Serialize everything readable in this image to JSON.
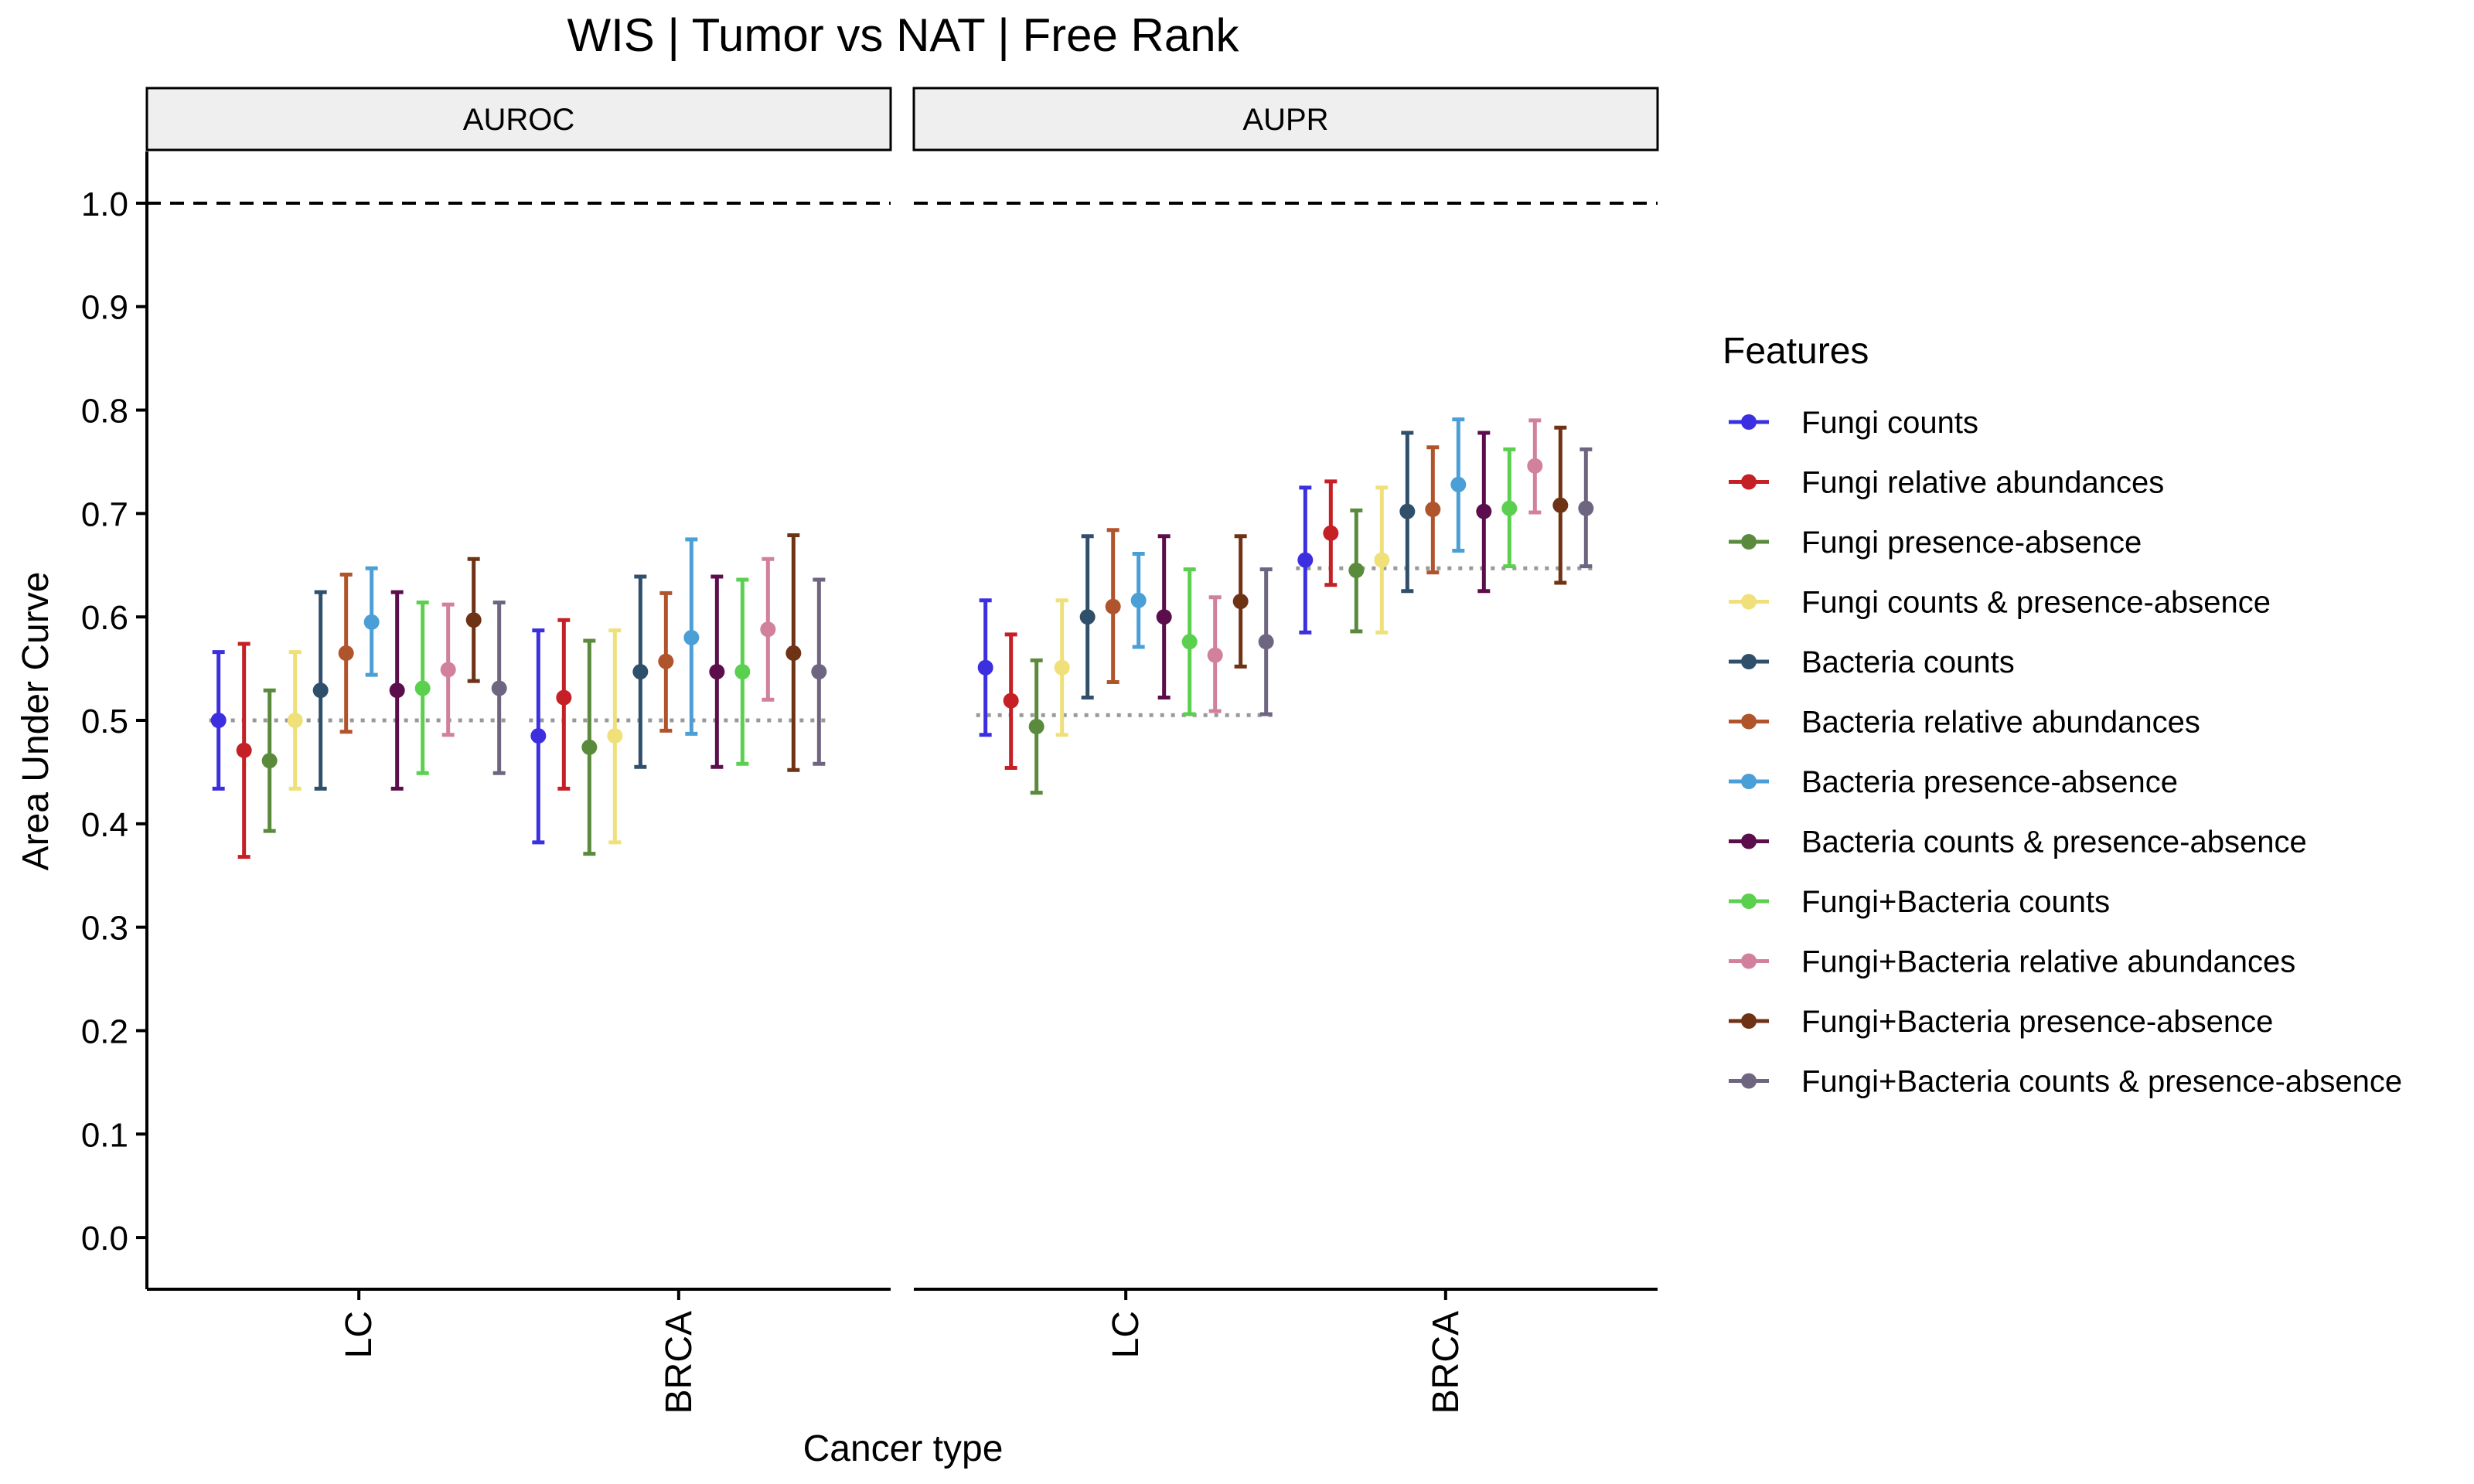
{
  "chart_data": {
    "type": "errorbar",
    "title": "WIS | Tumor vs NAT | Free Rank",
    "xlabel": "Cancer type",
    "ylabel": "Area Under Curve",
    "ylim": [
      -0.05,
      1.05
    ],
    "yticks": [
      0.0,
      0.1,
      0.2,
      0.3,
      0.4,
      0.5,
      0.6,
      0.7,
      0.8,
      0.9,
      1.0
    ],
    "ytick_labels": [
      "0.0",
      "0.1",
      "0.2",
      "0.3",
      "0.4",
      "0.5",
      "0.6",
      "0.7",
      "0.8",
      "0.9",
      "1.0"
    ],
    "categories": [
      "LC",
      "BRCA"
    ],
    "reference_line": 1.0,
    "grid": false,
    "legend": {
      "title": "Features",
      "placement": "right",
      "entries": [
        "Fungi counts",
        "Fungi relative abundances",
        "Fungi presence-absence",
        "Fungi counts & presence-absence",
        "Bacteria counts",
        "Bacteria relative abundances",
        "Bacteria presence-absence",
        "Bacteria counts & presence-absence",
        "Fungi+Bacteria counts",
        "Fungi+Bacteria relative abundances",
        "Fungi+Bacteria presence-absence",
        "Fungi+Bacteria counts & presence-absence"
      ]
    },
    "colors": [
      "#3b2fe0",
      "#c42026",
      "#5a8a3c",
      "#efe07a",
      "#2f4f6b",
      "#b0542b",
      "#4a9fd6",
      "#5c0e4c",
      "#5bd04f",
      "#d1809e",
      "#6e3214",
      "#6e6680"
    ],
    "panels": [
      {
        "name": "AUROC",
        "baseline": [
          0.5,
          0.5
        ],
        "series": [
          {
            "name": "Fungi counts",
            "values": [
              0.5,
              0.485
            ],
            "lower": [
              0.434,
              0.382
            ],
            "upper": [
              0.566,
              0.587
            ]
          },
          {
            "name": "Fungi relative abundances",
            "values": [
              0.471,
              0.522
            ],
            "lower": [
              0.368,
              0.434
            ],
            "upper": [
              0.574,
              0.597
            ]
          },
          {
            "name": "Fungi presence-absence",
            "values": [
              0.461,
              0.474
            ],
            "lower": [
              0.393,
              0.371
            ],
            "upper": [
              0.529,
              0.577
            ]
          },
          {
            "name": "Fungi counts & presence-absence",
            "values": [
              0.5,
              0.485
            ],
            "lower": [
              0.434,
              0.382
            ],
            "upper": [
              0.566,
              0.587
            ]
          },
          {
            "name": "Bacteria counts",
            "values": [
              0.529,
              0.547
            ],
            "lower": [
              0.434,
              0.455
            ],
            "upper": [
              0.624,
              0.639
            ]
          },
          {
            "name": "Bacteria relative abundances",
            "values": [
              0.565,
              0.557
            ],
            "lower": [
              0.489,
              0.49
            ],
            "upper": [
              0.641,
              0.623
            ]
          },
          {
            "name": "Bacteria presence-absence",
            "values": [
              0.595,
              0.58
            ],
            "lower": [
              0.544,
              0.487
            ],
            "upper": [
              0.647,
              0.675
            ]
          },
          {
            "name": "Bacteria counts & presence-absence",
            "values": [
              0.529,
              0.547
            ],
            "lower": [
              0.434,
              0.455
            ],
            "upper": [
              0.624,
              0.639
            ]
          },
          {
            "name": "Fungi+Bacteria counts",
            "values": [
              0.531,
              0.547
            ],
            "lower": [
              0.449,
              0.458
            ],
            "upper": [
              0.614,
              0.636
            ]
          },
          {
            "name": "Fungi+Bacteria relative abundances",
            "values": [
              0.549,
              0.588
            ],
            "lower": [
              0.486,
              0.52
            ],
            "upper": [
              0.612,
              0.656
            ]
          },
          {
            "name": "Fungi+Bacteria presence-absence",
            "values": [
              0.597,
              0.565
            ],
            "lower": [
              0.538,
              0.452
            ],
            "upper": [
              0.656,
              0.679
            ]
          },
          {
            "name": "Fungi+Bacteria counts & presence-absence",
            "values": [
              0.531,
              0.547
            ],
            "lower": [
              0.449,
              0.458
            ],
            "upper": [
              0.614,
              0.636
            ]
          }
        ]
      },
      {
        "name": "AUPR",
        "baseline": [
          0.505,
          0.647
        ],
        "series": [
          {
            "name": "Fungi counts",
            "values": [
              0.551,
              0.655
            ],
            "lower": [
              0.486,
              0.585
            ],
            "upper": [
              0.616,
              0.725
            ]
          },
          {
            "name": "Fungi relative abundances",
            "values": [
              0.519,
              0.681
            ],
            "lower": [
              0.454,
              0.631
            ],
            "upper": [
              0.583,
              0.731
            ]
          },
          {
            "name": "Fungi presence-absence",
            "values": [
              0.494,
              0.645
            ],
            "lower": [
              0.43,
              0.586
            ],
            "upper": [
              0.558,
              0.703
            ]
          },
          {
            "name": "Fungi counts & presence-absence",
            "values": [
              0.551,
              0.655
            ],
            "lower": [
              0.486,
              0.585
            ],
            "upper": [
              0.616,
              0.725
            ]
          },
          {
            "name": "Bacteria counts",
            "values": [
              0.6,
              0.702
            ],
            "lower": [
              0.522,
              0.625
            ],
            "upper": [
              0.678,
              0.778
            ]
          },
          {
            "name": "Bacteria relative abundances",
            "values": [
              0.61,
              0.704
            ],
            "lower": [
              0.537,
              0.643
            ],
            "upper": [
              0.684,
              0.764
            ]
          },
          {
            "name": "Bacteria presence-absence",
            "values": [
              0.616,
              0.728
            ],
            "lower": [
              0.571,
              0.664
            ],
            "upper": [
              0.661,
              0.791
            ]
          },
          {
            "name": "Bacteria counts & presence-absence",
            "values": [
              0.6,
              0.702
            ],
            "lower": [
              0.522,
              0.625
            ],
            "upper": [
              0.678,
              0.778
            ]
          },
          {
            "name": "Fungi+Bacteria counts",
            "values": [
              0.576,
              0.705
            ],
            "lower": [
              0.506,
              0.649
            ],
            "upper": [
              0.646,
              0.762
            ]
          },
          {
            "name": "Fungi+Bacteria relative abundances",
            "values": [
              0.563,
              0.746
            ],
            "lower": [
              0.509,
              0.701
            ],
            "upper": [
              0.619,
              0.79
            ]
          },
          {
            "name": "Fungi+Bacteria presence-absence",
            "values": [
              0.615,
              0.708
            ],
            "lower": [
              0.552,
              0.633
            ],
            "upper": [
              0.678,
              0.783
            ]
          },
          {
            "name": "Fungi+Bacteria counts & presence-absence",
            "values": [
              0.576,
              0.705
            ],
            "lower": [
              0.506,
              0.649
            ],
            "upper": [
              0.646,
              0.762
            ]
          }
        ]
      }
    ]
  }
}
